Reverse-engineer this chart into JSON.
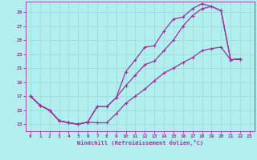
{
  "xlabel": "Windchill (Refroidissement éolien,°C)",
  "bg_color": "#b2eeee",
  "grid_color": "#99dddd",
  "line_color": "#993399",
  "xlim": [
    -0.5,
    23.5
  ],
  "ylim": [
    12.0,
    30.5
  ],
  "xticks": [
    0,
    1,
    2,
    3,
    4,
    5,
    6,
    7,
    8,
    9,
    10,
    11,
    12,
    13,
    14,
    15,
    16,
    17,
    18,
    19,
    20,
    21,
    22,
    23
  ],
  "yticks": [
    13,
    15,
    17,
    19,
    21,
    23,
    25,
    27,
    29
  ],
  "curve1_x": [
    0,
    1,
    2,
    3,
    4,
    5,
    6,
    7,
    8,
    9,
    10,
    11,
    12,
    13,
    14,
    15,
    16,
    17,
    18,
    19,
    20,
    21,
    22
  ],
  "curve1_y": [
    17,
    15.7,
    15.0,
    13.5,
    13.2,
    13.0,
    13.3,
    15.5,
    15.5,
    16.8,
    20.5,
    22.2,
    24.0,
    24.2,
    26.3,
    28.0,
    28.3,
    29.5,
    30.2,
    29.8,
    29.2,
    22.2,
    22.3
  ],
  "curve2_x": [
    0,
    1,
    2,
    3,
    4,
    5,
    6,
    7,
    8,
    9,
    10,
    11,
    12,
    13,
    14,
    15,
    16,
    17,
    18,
    19,
    20,
    21,
    22
  ],
  "curve2_y": [
    17,
    15.7,
    15.0,
    13.5,
    13.2,
    13.0,
    13.3,
    13.2,
    13.2,
    14.5,
    16.0,
    17.0,
    18.0,
    19.2,
    20.3,
    21.0,
    21.8,
    22.5,
    23.5,
    23.8,
    24.0,
    22.2,
    22.3
  ],
  "curve3_x": [
    0,
    1,
    2,
    3,
    4,
    5,
    6,
    7,
    8,
    9,
    10,
    11,
    12,
    13,
    14,
    15,
    16,
    17,
    18,
    19,
    20,
    21,
    22
  ],
  "curve3_y": [
    17,
    15.7,
    15.0,
    13.5,
    13.2,
    13.0,
    13.3,
    15.5,
    15.5,
    16.8,
    18.5,
    20.0,
    21.5,
    22.0,
    23.5,
    25.0,
    27.0,
    28.5,
    29.5,
    29.8,
    29.2,
    22.2,
    22.3
  ]
}
